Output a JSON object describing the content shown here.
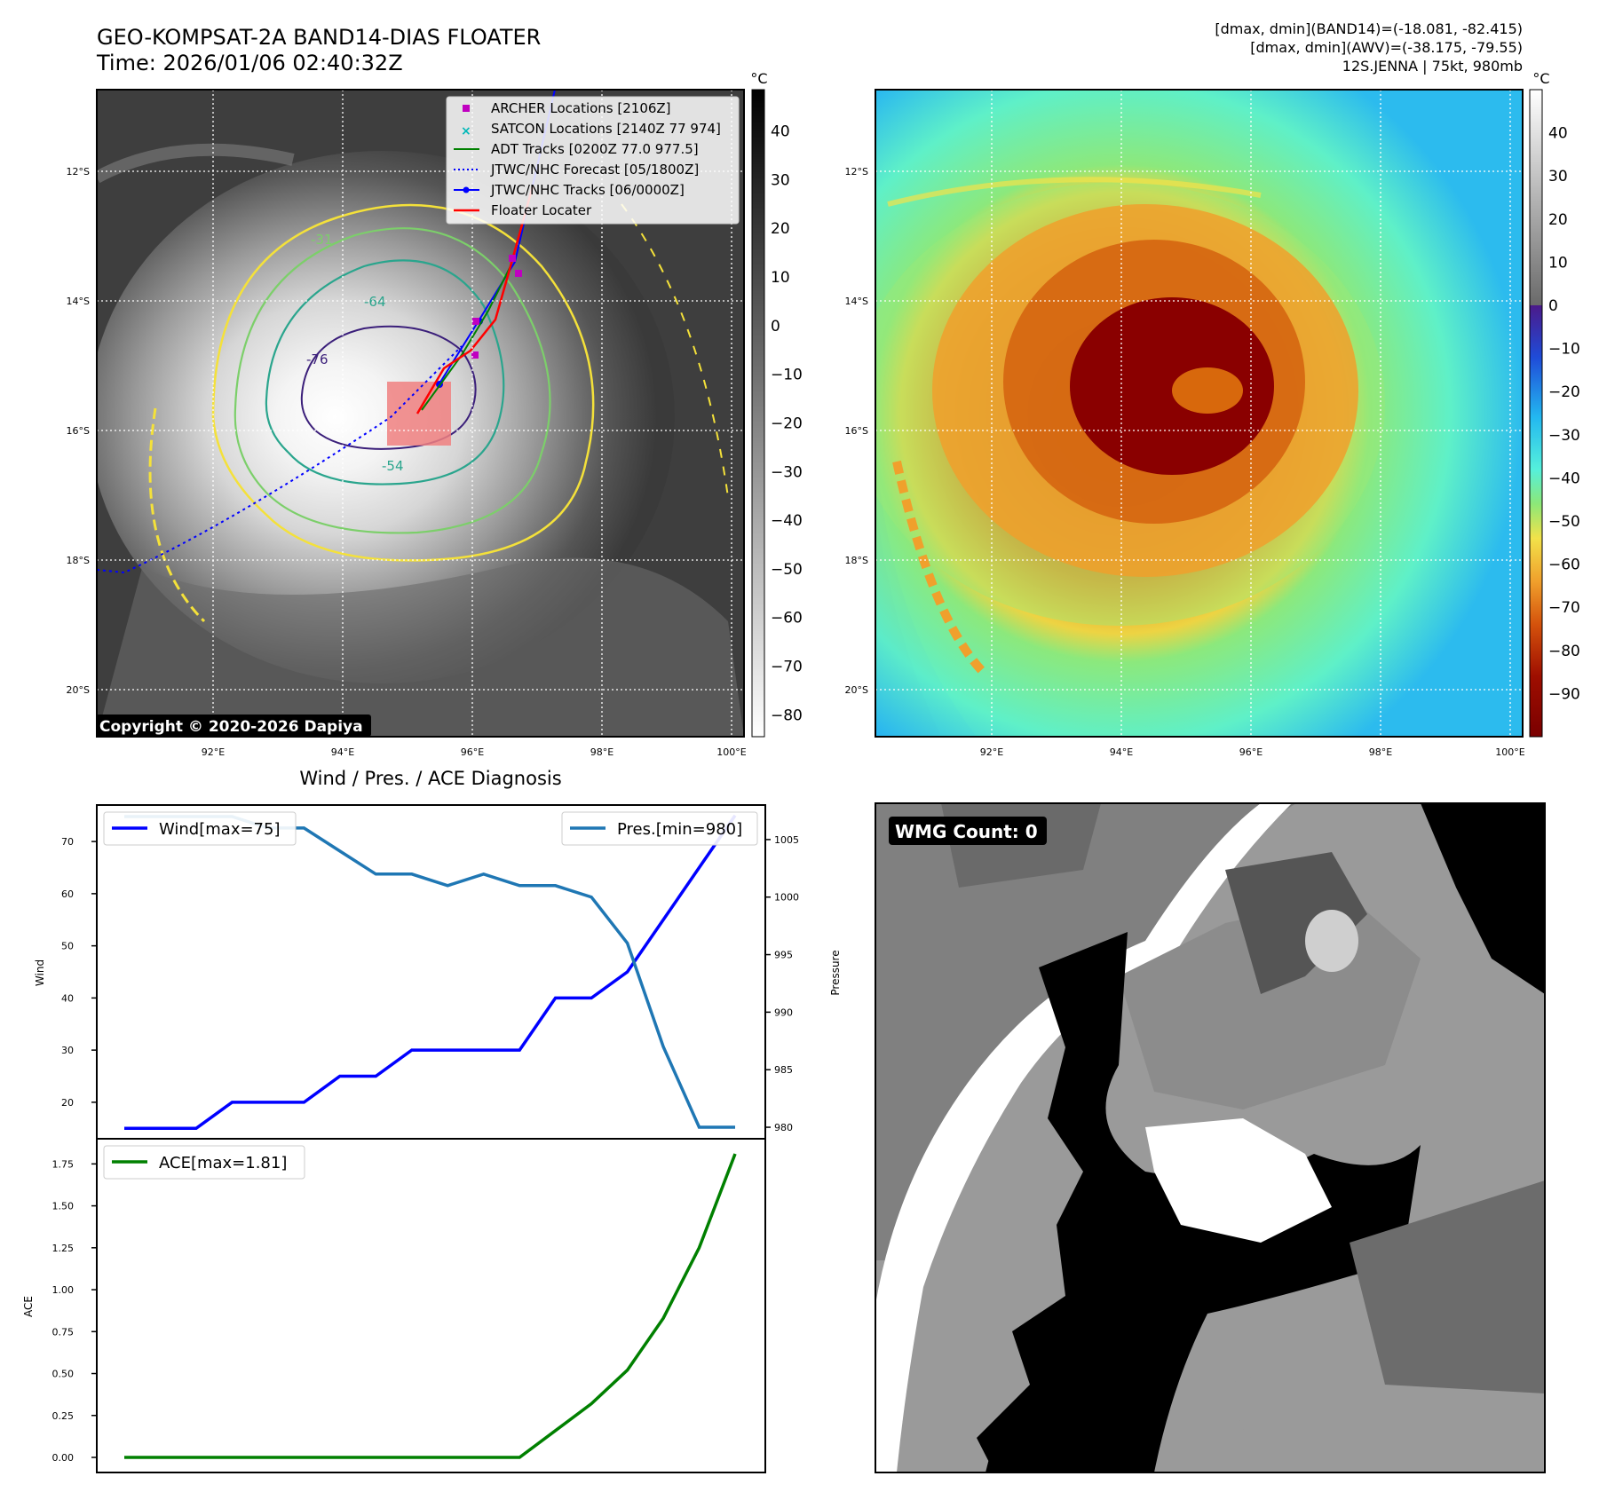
{
  "header": {
    "title_line1": "GEO-KOMPSAT-2A BAND14-DIAS FLOATER",
    "title_line2": "Time: 2026/01/06 02:40:32Z",
    "right_line1": "[dmax, dmin](BAND14)=(-18.081, -82.415)",
    "right_line2": "[dmax, dmin](AWV)=(-38.175, -79.55)",
    "right_line3": "12S.JENNA | 75kt, 980mb"
  },
  "maps": {
    "lat_labels": [
      "12°S",
      "14°S",
      "16°S",
      "18°S",
      "20°S"
    ],
    "lon_labels": [
      "92°E",
      "94°E",
      "96°E",
      "98°E",
      "100°E"
    ],
    "copyright": "Copyright © 2020-2026 Dapiya",
    "contour_labels": [
      "-31",
      "-54",
      "-64",
      "-76"
    ],
    "colors": {
      "contour_yellow": "#f4e13a",
      "contour_lightgreen": "#7ccf6a",
      "contour_teal": "#2aa58d",
      "contour_purple": "#3b1f7a"
    }
  },
  "left_colorbar": {
    "unit": "°C",
    "ticks": [
      "40",
      "30",
      "20",
      "10",
      "0",
      "−10",
      "−20",
      "−30",
      "−40",
      "−50",
      "−60",
      "−70",
      "−80"
    ]
  },
  "right_colorbar": {
    "unit": "°C",
    "ticks": [
      "40",
      "30",
      "20",
      "10",
      "0",
      "−10",
      "−20",
      "−30",
      "−40",
      "−50",
      "−60",
      "−70",
      "−80",
      "−90"
    ]
  },
  "map_legend": [
    {
      "label": "ARCHER Locations [2106Z]",
      "symbol": "square",
      "color": "#c000c0"
    },
    {
      "label": "SATCON Locations [2140Z 77 974]",
      "symbol": "x",
      "color": "#00c0c0"
    },
    {
      "label": "ADT Tracks [0200Z 77.0 977.5]",
      "symbol": "line",
      "color": "#008000"
    },
    {
      "label": "JTWC/NHC Forecast [05/1800Z]",
      "symbol": "dotted",
      "color": "#0000ff"
    },
    {
      "label": "JTWC/NHC Tracks [06/0000Z]",
      "symbol": "line-dot",
      "color": "#0000ff"
    },
    {
      "label": "Floater Locater",
      "symbol": "line",
      "color": "#ff0000"
    }
  ],
  "diagnosis": {
    "title": "Wind / Pres. / ACE Diagnosis",
    "wind_legend": "Wind[max=75]",
    "pres_legend": "Pres.[min=980]",
    "ace_legend": "ACE[max=1.81]",
    "wind_axis_label": "Wind",
    "pres_axis_label": "Pressure",
    "ace_axis_label": "ACE",
    "wind_ticks": [
      "70",
      "60",
      "50",
      "40",
      "30",
      "20"
    ],
    "pres_ticks": [
      "1005",
      "1000",
      "995",
      "990",
      "985",
      "980"
    ],
    "ace_ticks": [
      "1.75",
      "1.50",
      "1.25",
      "1.00",
      "0.75",
      "0.50",
      "0.25",
      "0.00"
    ]
  },
  "wmg": {
    "label": "WMG Count: 0"
  },
  "chart_data": [
    {
      "type": "line",
      "x": [
        0,
        1,
        2,
        3,
        4,
        5,
        6,
        7,
        8,
        9,
        10,
        11,
        12,
        13,
        14,
        15,
        16,
        17
      ],
      "series": [
        {
          "name": "Wind[max=75]",
          "values": [
            15,
            15,
            15,
            20,
            20,
            20,
            25,
            25,
            30,
            30,
            30,
            30,
            40,
            40,
            45,
            55,
            65,
            75
          ],
          "color": "#0000ff"
        },
        {
          "name": "Pres.[min=980]",
          "values": [
            1007,
            1007,
            1007,
            1007,
            1006,
            1006,
            1004,
            1002,
            1002,
            1001,
            1002,
            1001,
            1001,
            1000,
            996,
            987,
            980,
            980
          ],
          "color": "#1f77b4"
        }
      ],
      "ylim_left": [
        13,
        77
      ],
      "ylim_right": [
        979,
        1008
      ],
      "ylabel": "Wind",
      "ylabel_right": "Pressure",
      "title": "Wind / Pres. / ACE Diagnosis"
    },
    {
      "type": "line",
      "x": [
        0,
        1,
        2,
        3,
        4,
        5,
        6,
        7,
        8,
        9,
        10,
        11,
        12,
        13,
        14,
        15,
        16,
        17
      ],
      "series": [
        {
          "name": "ACE[max=1.81]",
          "values": [
            0,
            0,
            0,
            0,
            0,
            0,
            0,
            0,
            0,
            0,
            0,
            0,
            0.16,
            0.32,
            0.52,
            0.83,
            1.25,
            1.81
          ],
          "color": "#008000"
        }
      ],
      "ylim": [
        -0.09,
        1.9
      ],
      "ylabel": "ACE"
    }
  ]
}
